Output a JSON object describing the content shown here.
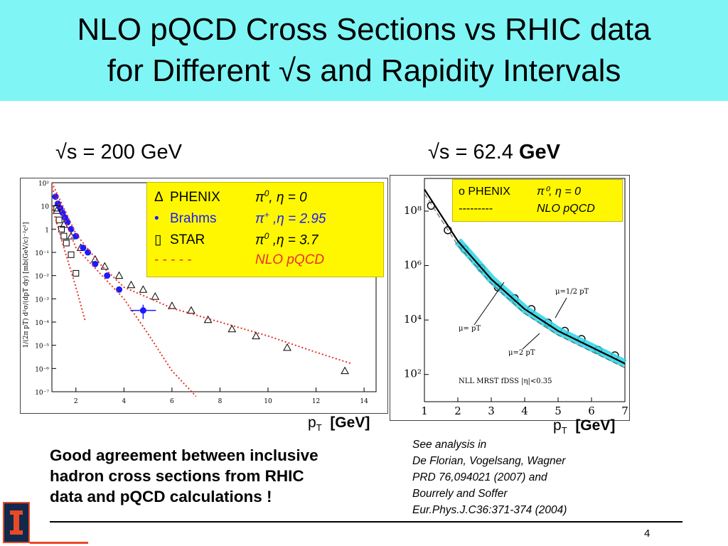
{
  "slide": {
    "title_line1": "NLO pQCD Cross Sections vs RHIC data",
    "title_line2": "for Different √s and Rapidity Intervals",
    "page_number": "4",
    "colors": {
      "title_band": "#7ff5f5",
      "legend_bg": "#fff700",
      "theory": "#e8302a",
      "brahms": "#1a1aff",
      "nlo_band": "#2ad4e6"
    }
  },
  "left_panel": {
    "energy_prefix": "√s = ",
    "energy_value": "200 GeV",
    "y_axis_label": "1/(2π pT) d²σ/(dpT dy) [mb(GeV/c)⁻²c²]",
    "x_tick_labels": [
      "2",
      "4",
      "6",
      "8",
      "10",
      "12",
      "14"
    ],
    "y_tick_labels": [
      "10²",
      "10",
      "1",
      "10⁻¹",
      "10⁻²",
      "10⁻³",
      "10⁻⁴",
      "10⁻⁵",
      "10⁻⁶",
      "10⁻⁷"
    ],
    "x_axis_label": "pT  [GeV]",
    "legend": [
      {
        "marker": "Δ",
        "experiment": "PHENIX",
        "particle": "π",
        "sup": "0",
        "rest": ", η = 0"
      },
      {
        "marker": "•",
        "experiment": "Brahms",
        "particle": "π",
        "sup": "+",
        "rest": " ,η = 2.95"
      },
      {
        "marker": "▯",
        "experiment": "STAR",
        "particle": "π",
        "sup": "0",
        "rest": " ,η =  3.7"
      },
      {
        "marker": "- - - - -",
        "experiment": "",
        "particle": "NLO pQCD",
        "sup": "",
        "rest": ""
      }
    ]
  },
  "right_panel": {
    "energy_prefix": "√s = 62.4 ",
    "energy_value": "GeV",
    "x_tick_labels": [
      "1",
      "2",
      "3",
      "4",
      "5",
      "6",
      "7"
    ],
    "y_tick_labels": [
      "10⁸",
      "10⁶",
      "10⁴",
      "10²"
    ],
    "x_axis_label": "pT  [GeV]",
    "legend": [
      {
        "label": "o PHENIX",
        "value": "π⁰, η = 0"
      },
      {
        "label": "---------",
        "value": "NLO pQCD"
      }
    ],
    "annotations": {
      "mu_pt": "μ=  pT",
      "mu_half": "μ=1/2  pT",
      "mu_two": "μ=2  pT",
      "footer": "NLL    MRST    fDSS    |η|<0.35"
    }
  },
  "chart_data": [
    {
      "type": "scatter",
      "title": "√s = 200 GeV",
      "xlabel": "pT [GeV]",
      "ylabel": "1/(2π pT) d²σ/(dpT dy) [mb(GeV/c)⁻²c²]",
      "xlim": [
        1,
        14.5
      ],
      "ylim": [
        -7,
        2
      ],
      "log_y": true,
      "series": [
        {
          "name": "PHENIX π0, η = 0",
          "marker": "triangle",
          "x": [
            1.2,
            1.5,
            1.8,
            2.2,
            2.8,
            3.2,
            3.8,
            4.3,
            4.8,
            5.3,
            6.0,
            6.8,
            7.5,
            8.5,
            9.5,
            10.8,
            13.2
          ],
          "y": [
            0.8,
            0.2,
            -0.3,
            -0.8,
            -1.3,
            -1.6,
            -2.0,
            -2.4,
            -2.6,
            -2.9,
            -3.3,
            -3.5,
            -3.9,
            -4.3,
            -4.6,
            -5.1,
            -6.1
          ]
        },
        {
          "name": "Brahms π+, η = 2.95",
          "marker": "filled-circle",
          "x": [
            1.15,
            1.25,
            1.35,
            1.45,
            1.55,
            1.65,
            1.8,
            2.0,
            2.3,
            2.5,
            2.8,
            3.3,
            3.8,
            4.8
          ],
          "y": [
            1.4,
            1.1,
            0.9,
            0.7,
            0.5,
            0.3,
            0.0,
            -0.3,
            -0.8,
            -1.0,
            -1.5,
            -2.0,
            -2.6,
            -3.5
          ]
        },
        {
          "name": "STAR π0, η = 3.7",
          "marker": "open-square",
          "x": [
            1.2,
            1.3,
            1.4,
            1.5,
            1.6,
            1.8,
            2.0
          ],
          "y": [
            0.9,
            0.4,
            0.0,
            -0.3,
            -0.6,
            -1.1,
            -1.9
          ]
        },
        {
          "name": "NLO pQCD",
          "marker": "dotted-line",
          "x": [
            1.0,
            2.0,
            3.0,
            4.0,
            6.0,
            8.0,
            10.0,
            12.0,
            13.5
          ],
          "y": [
            2.0,
            -0.2,
            -1.5,
            -2.5,
            -3.4,
            -4.0,
            -4.6,
            -5.3,
            -5.8
          ]
        },
        {
          "name": "NLO pQCD",
          "marker": "dotted-line",
          "x": [
            1.0,
            2.0,
            3.0,
            4.0,
            5.0,
            6.0,
            7.0
          ],
          "y": [
            1.8,
            -0.8,
            -1.9,
            -3.0,
            -4.5,
            -6.1,
            -7.2
          ]
        },
        {
          "name": "NLO pQCD",
          "marker": "dotted-line",
          "x": [
            1.0,
            1.5,
            2.0,
            2.4
          ],
          "y": [
            1.0,
            -0.8,
            -2.5,
            -4.0
          ]
        }
      ]
    },
    {
      "type": "scatter",
      "title": "√s = 62.4 GeV",
      "xlabel": "pT [GeV]",
      "xlim": [
        1,
        7
      ],
      "ylim": [
        1,
        9.2
      ],
      "log_y": true,
      "series": [
        {
          "name": "PHENIX π0, η = 0",
          "marker": "open-circle",
          "x": [
            1.2,
            1.7,
            2.2,
            2.7,
            3.2,
            3.7,
            4.2,
            4.7,
            5.2,
            5.7,
            6.2,
            6.7
          ],
          "y": [
            8.2,
            7.3,
            6.6,
            5.9,
            5.2,
            4.8,
            4.4,
            3.9,
            3.6,
            3.3,
            2.9,
            2.7
          ]
        },
        {
          "name": "NLO pQCD",
          "marker": "line",
          "x": [
            1.0,
            2.0,
            3.0,
            4.0,
            5.0,
            6.0,
            7.0
          ],
          "y": [
            8.8,
            6.9,
            5.5,
            4.4,
            3.6,
            3.0,
            2.4
          ]
        }
      ]
    }
  ],
  "bottom": {
    "agreement": [
      "Good agreement between inclusive",
      "hadron cross sections  from RHIC",
      "data and pQCD calculations !"
    ],
    "refs": [
      "See analysis in",
      "De Florian, Vogelsang, Wagner",
      "PRD 76,094021 (2007) and",
      "Bourrely and Soffer",
      "Eur.Phys.J.C36:371-374 (2004)"
    ]
  }
}
